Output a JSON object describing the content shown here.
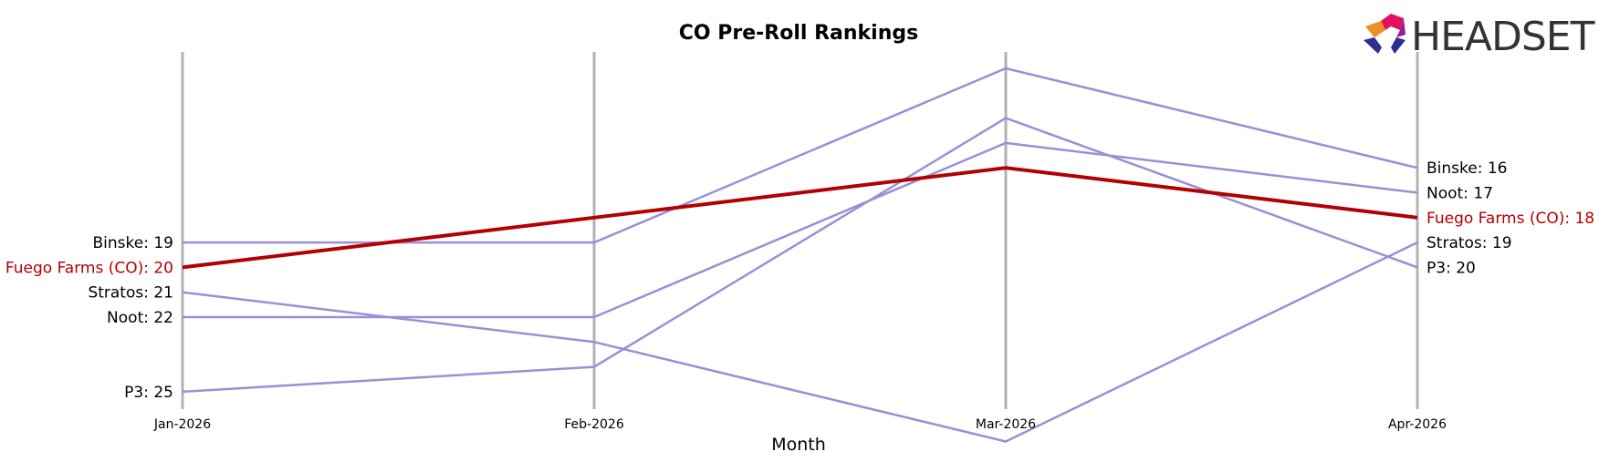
{
  "chart_data": {
    "type": "line",
    "title": "CO Pre-Roll Rankings",
    "xlabel": "Month",
    "ylabel": "",
    "categories": [
      "Jan-2026",
      "Feb-2026",
      "Mar-2026",
      "Apr-2026"
    ],
    "y_inverted": true,
    "ylim": [
      29.7,
      11.1
    ],
    "grid": false,
    "series": [
      {
        "name": "Binske",
        "values": [
          19,
          19,
          12,
          16
        ],
        "color": "#9b8fd6",
        "highlight": false
      },
      {
        "name": "Fuego Farms (CO)",
        "values": [
          20,
          18,
          16,
          18
        ],
        "color": "#b30000",
        "highlight": true
      },
      {
        "name": "Stratos",
        "values": [
          21,
          23,
          27,
          19
        ],
        "color": "#9b8fd6",
        "highlight": false
      },
      {
        "name": "Noot",
        "values": [
          22,
          22,
          15,
          17
        ],
        "color": "#9b8fd6",
        "highlight": false
      },
      {
        "name": "P3",
        "values": [
          25,
          24,
          14,
          20
        ],
        "color": "#9b8fd6",
        "highlight": false
      }
    ],
    "start_labels": [
      {
        "series": "Binske",
        "text": "Binske: 19"
      },
      {
        "series": "Fuego Farms (CO)",
        "text": "Fuego Farms (CO): 20"
      },
      {
        "series": "Stratos",
        "text": "Stratos: 21"
      },
      {
        "series": "Noot",
        "text": "Noot: 22"
      },
      {
        "series": "P3",
        "text": "P3: 25"
      }
    ],
    "end_labels": [
      {
        "series": "Binske",
        "text": "Binske: 16"
      },
      {
        "series": "Noot",
        "text": "Noot: 17"
      },
      {
        "series": "Fuego Farms (CO)",
        "text": "Fuego Farms (CO): 18"
      },
      {
        "series": "Stratos",
        "text": "Stratos: 19"
      },
      {
        "series": "P3",
        "text": "P3: 20"
      }
    ],
    "axis_line_color": "#b3b3b3"
  },
  "logo": {
    "text": "HEADSET",
    "colors": [
      "#e0115f",
      "#f28c28",
      "#9b1b9b",
      "#2b2f8f"
    ]
  }
}
